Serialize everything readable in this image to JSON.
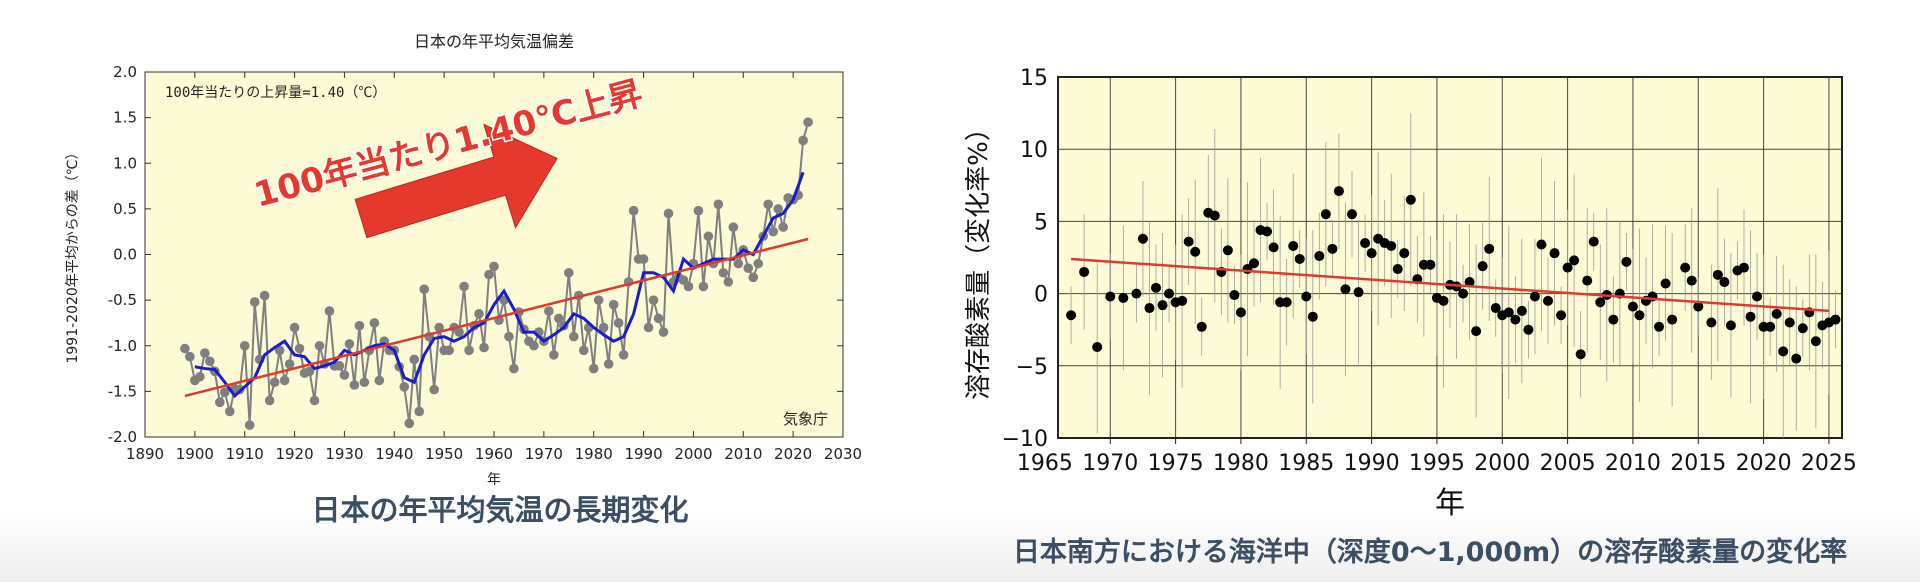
{
  "colors": {
    "plot_bg": "#fdfbd6",
    "raw_series": "#7f7f7f",
    "smoothed_series": "#1c1cc8",
    "trend": "#dc3c30",
    "arrow": "#e4392c",
    "caption_text": "#3b4e63"
  },
  "left_panel": {
    "caption": "日本の年平均気温の長期変化",
    "arrow_annotation": "100年当たり1.40℃上昇",
    "arrow_icon": "right-arrow-icon"
  },
  "right_panel": {
    "caption": "日本南方における海洋中（深度0～1,000m）の溶存酸素量の変化率"
  },
  "chart_data": [
    {
      "type": "line",
      "title": "日本の年平均気温偏差",
      "xlabel": "年",
      "ylabel": "1991-2020年平均からの差（℃）",
      "xlim": [
        1890,
        2030
      ],
      "ylim": [
        -2.0,
        2.0
      ],
      "xticks": [
        1890,
        1900,
        1910,
        1920,
        1930,
        1940,
        1950,
        1960,
        1970,
        1980,
        1990,
        2000,
        2010,
        2020,
        2030
      ],
      "yticks": [
        -2.0,
        -1.5,
        -1.0,
        -0.5,
        0.0,
        0.5,
        1.0,
        1.5,
        2.0
      ],
      "xtick_labels": [
        "1890",
        "1900",
        "1910",
        "1920",
        "1930",
        "1940",
        "1950",
        "1960",
        "1970",
        "1980",
        "1990",
        "2000",
        "2010",
        "2020",
        "2030"
      ],
      "ytick_labels": [
        "-2.0",
        "-1.5",
        "-1.0",
        "-0.5",
        "0.0",
        "0.5",
        "1.0",
        "1.5",
        "2.0"
      ],
      "grid": false,
      "annotations": [
        "100年当たりの上昇量=1.40（℃）",
        "気象庁"
      ],
      "series": [
        {
          "style": "line-markers",
          "x_start": 1898,
          "values": [
            -1.03,
            -1.12,
            -1.38,
            -1.34,
            -1.08,
            -1.17,
            -1.28,
            -1.62,
            -1.51,
            -1.72,
            -1.47,
            -1.48,
            -1.0,
            -1.87,
            -0.52,
            -1.15,
            -0.45,
            -1.6,
            -1.4,
            -1.05,
            -1.38,
            -1.2,
            -0.8,
            -1.03,
            -1.3,
            -1.28,
            -1.6,
            -1.0,
            -1.2,
            -0.62,
            -1.22,
            -1.22,
            -1.32,
            -0.98,
            -1.43,
            -0.78,
            -1.4,
            -1.05,
            -0.75,
            -1.38,
            -0.95,
            -1.05,
            -1.05,
            -1.23,
            -1.45,
            -1.85,
            -1.15,
            -1.72,
            -0.38,
            -0.9,
            -1.48,
            -0.8,
            -1.05,
            -1.05,
            -0.8,
            -0.85,
            -0.35,
            -1.05,
            -0.78,
            -0.65,
            -1.02,
            -0.22,
            -0.13,
            -0.72,
            -0.5,
            -0.9,
            -1.25,
            -0.63,
            -0.82,
            -0.95,
            -1.0,
            -0.85,
            -0.95,
            -0.62,
            -1.1,
            -0.7,
            -0.78,
            -0.2,
            -0.9,
            -0.45,
            -1.05,
            -0.8,
            -1.25,
            -0.5,
            -0.8,
            -1.2,
            -0.55,
            -0.75,
            -1.1,
            -0.3,
            0.48,
            -0.05,
            -0.05,
            -0.8,
            -0.5,
            -0.7,
            -0.85,
            0.45,
            -0.3,
            -0.25,
            -0.28,
            -0.35,
            -0.1,
            0.48,
            -0.35,
            0.2,
            -0.1,
            0.55,
            -0.2,
            -0.3,
            0.3,
            -0.1,
            0.05,
            -0.15,
            -0.25,
            -0.1,
            0.2,
            0.55,
            0.25,
            0.5,
            0.3,
            0.62,
            0.6,
            0.65,
            1.25,
            1.45
          ]
        },
        {
          "style": "line",
          "x": [
            1900,
            1902,
            1904,
            1906,
            1908,
            1910,
            1912,
            1914,
            1916,
            1918,
            1920,
            1922,
            1924,
            1926,
            1928,
            1930,
            1932,
            1934,
            1936,
            1938,
            1940,
            1942,
            1944,
            1946,
            1948,
            1950,
            1952,
            1954,
            1956,
            1958,
            1960,
            1962,
            1964,
            1966,
            1968,
            1970,
            1972,
            1974,
            1976,
            1978,
            1980,
            1982,
            1984,
            1986,
            1988,
            1990,
            1992,
            1994,
            1996,
            1998,
            2000,
            2002,
            2004,
            2006,
            2008,
            2010,
            2012,
            2014,
            2016,
            2018,
            2020,
            2022
          ],
          "values": [
            -1.23,
            -1.25,
            -1.26,
            -1.4,
            -1.55,
            -1.45,
            -1.35,
            -1.1,
            -1.02,
            -0.95,
            -1.1,
            -1.12,
            -1.25,
            -1.22,
            -1.18,
            -1.05,
            -1.1,
            -1.05,
            -1.0,
            -0.98,
            -1.05,
            -1.35,
            -1.4,
            -1.1,
            -0.92,
            -0.9,
            -0.95,
            -0.9,
            -0.8,
            -0.75,
            -0.55,
            -0.4,
            -0.6,
            -0.85,
            -0.85,
            -0.95,
            -0.88,
            -0.8,
            -0.65,
            -0.7,
            -0.8,
            -0.88,
            -0.95,
            -0.9,
            -0.65,
            -0.2,
            -0.2,
            -0.25,
            -0.4,
            -0.05,
            -0.15,
            -0.1,
            -0.05,
            -0.05,
            -0.05,
            0.05,
            0.0,
            0.2,
            0.4,
            0.45,
            0.6,
            0.9
          ]
        },
        {
          "style": "trend",
          "x": [
            1898,
            2023
          ],
          "values": [
            -1.55,
            0.17
          ]
        }
      ]
    },
    {
      "type": "scatter",
      "xlabel": "年",
      "ylabel": "溶存酸素量（変化率%）",
      "xlim": [
        1966,
        2026
      ],
      "ylim": [
        -10,
        15
      ],
      "xticks": [
        1965,
        1970,
        1975,
        1980,
        1985,
        1990,
        1995,
        2000,
        2005,
        2010,
        2015,
        2020,
        2025
      ],
      "yticks": [
        -10,
        -5,
        0,
        5,
        10,
        15
      ],
      "xtick_labels": [
        "1965",
        "1970",
        "1975",
        "1980",
        "1985",
        "1990",
        "1995",
        "2000",
        "2005",
        "2010",
        "2015",
        "2020",
        "2025"
      ],
      "ytick_labels": [
        "−10",
        "−5",
        "0",
        "5",
        "10",
        "15"
      ],
      "grid": true,
      "error_bars": true,
      "points": [
        [
          1967.0,
          -1.5
        ],
        [
          1968.0,
          1.5
        ],
        [
          1969.0,
          -3.7
        ],
        [
          1970.0,
          -0.2
        ],
        [
          1971.0,
          -0.3
        ],
        [
          1972.0,
          0.0
        ],
        [
          1972.5,
          3.8
        ],
        [
          1973.0,
          -1.0
        ],
        [
          1973.5,
          0.4
        ],
        [
          1974.0,
          -0.8
        ],
        [
          1974.5,
          0.0
        ],
        [
          1975.0,
          -0.6
        ],
        [
          1975.5,
          -0.5
        ],
        [
          1976.0,
          3.6
        ],
        [
          1976.5,
          2.9
        ],
        [
          1977.0,
          -2.3
        ],
        [
          1977.5,
          5.6
        ],
        [
          1978.0,
          5.4
        ],
        [
          1978.5,
          1.5
        ],
        [
          1979.0,
          3.0
        ],
        [
          1979.5,
          -0.1
        ],
        [
          1980.0,
          -1.3
        ],
        [
          1980.5,
          1.7
        ],
        [
          1981.0,
          2.1
        ],
        [
          1981.5,
          4.4
        ],
        [
          1982.0,
          4.3
        ],
        [
          1982.5,
          3.2
        ],
        [
          1983.0,
          -0.6
        ],
        [
          1983.5,
          -0.6
        ],
        [
          1984.0,
          3.3
        ],
        [
          1984.5,
          2.4
        ],
        [
          1985.0,
          -0.2
        ],
        [
          1985.5,
          -1.6
        ],
        [
          1986.0,
          2.6
        ],
        [
          1986.5,
          5.5
        ],
        [
          1987.0,
          3.1
        ],
        [
          1987.5,
          7.1
        ],
        [
          1988.0,
          0.3
        ],
        [
          1988.5,
          5.5
        ],
        [
          1989.0,
          0.1
        ],
        [
          1989.5,
          3.5
        ],
        [
          1990.0,
          2.8
        ],
        [
          1990.5,
          3.8
        ],
        [
          1991.0,
          3.5
        ],
        [
          1991.5,
          3.3
        ],
        [
          1992.0,
          1.7
        ],
        [
          1992.5,
          2.8
        ],
        [
          1993.0,
          6.5
        ],
        [
          1993.5,
          1.0
        ],
        [
          1994.0,
          2.0
        ],
        [
          1994.5,
          2.0
        ],
        [
          1995.0,
          -0.3
        ],
        [
          1995.5,
          -0.5
        ],
        [
          1996.0,
          0.6
        ],
        [
          1996.5,
          0.5
        ],
        [
          1997.0,
          0.0
        ],
        [
          1997.5,
          0.8
        ],
        [
          1998.0,
          -2.6
        ],
        [
          1998.5,
          1.9
        ],
        [
          1999.0,
          3.1
        ],
        [
          1999.5,
          -1.0
        ],
        [
          2000.0,
          -1.5
        ],
        [
          2000.5,
          -1.3
        ],
        [
          2001.0,
          -1.8
        ],
        [
          2001.5,
          -1.2
        ],
        [
          2002.0,
          -2.5
        ],
        [
          2002.5,
          -0.2
        ],
        [
          2003.0,
          3.4
        ],
        [
          2003.5,
          -0.5
        ],
        [
          2004.0,
          2.8
        ],
        [
          2004.5,
          -1.5
        ],
        [
          2005.0,
          1.8
        ],
        [
          2005.5,
          2.3
        ],
        [
          2006.0,
          -4.2
        ],
        [
          2006.5,
          0.9
        ],
        [
          2007.0,
          3.6
        ],
        [
          2007.5,
          -0.6
        ],
        [
          2008.0,
          -0.1
        ],
        [
          2008.5,
          -1.8
        ],
        [
          2009.0,
          0.0
        ],
        [
          2009.5,
          2.2
        ],
        [
          2010.0,
          -0.9
        ],
        [
          2010.5,
          -1.5
        ],
        [
          2011.0,
          -0.5
        ],
        [
          2011.5,
          -0.2
        ],
        [
          2012.0,
          -2.3
        ],
        [
          2012.5,
          0.7
        ],
        [
          2013.0,
          -1.8
        ],
        [
          2014.0,
          1.8
        ],
        [
          2014.5,
          0.9
        ],
        [
          2015.0,
          -0.9
        ],
        [
          2016.0,
          -2.0
        ],
        [
          2016.5,
          1.3
        ],
        [
          2017.0,
          0.8
        ],
        [
          2017.5,
          -2.2
        ],
        [
          2018.0,
          1.6
        ],
        [
          2018.5,
          1.8
        ],
        [
          2019.0,
          -1.6
        ],
        [
          2019.5,
          -0.2
        ],
        [
          2020.0,
          -2.3
        ],
        [
          2020.5,
          -2.3
        ],
        [
          2021.0,
          -1.4
        ],
        [
          2021.5,
          -4.0
        ],
        [
          2022.0,
          -2.0
        ],
        [
          2022.5,
          -4.5
        ],
        [
          2023.0,
          -2.4
        ],
        [
          2023.5,
          -1.3
        ],
        [
          2024.0,
          -3.3
        ],
        [
          2024.5,
          -2.2
        ],
        [
          2025.0,
          -2.0
        ],
        [
          2025.5,
          -1.8
        ]
      ],
      "trend": {
        "x": [
          1967,
          2025
        ],
        "values": [
          2.4,
          -1.2
        ]
      }
    }
  ]
}
